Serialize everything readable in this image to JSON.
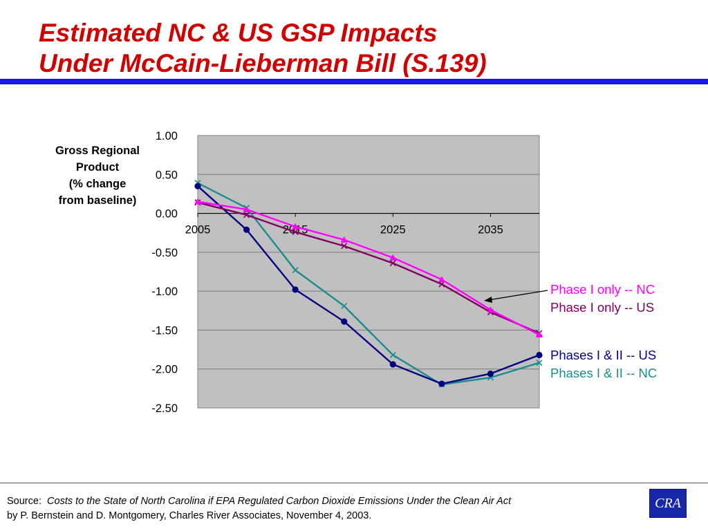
{
  "title": {
    "line1": "Estimated NC & US GSP Impacts",
    "line2": "Under McCain-Lieberman Bill (S.139)"
  },
  "chart_data": {
    "type": "line",
    "ylabel_lines": [
      "Gross Regional",
      "Product",
      "(% change",
      "from baseline)"
    ],
    "xlabel": "",
    "ylim": [
      -2.5,
      1.0
    ],
    "y_ticks": [
      "1.00",
      "0.50",
      "0.00",
      "-0.50",
      "-1.00",
      "-1.50",
      "-2.00",
      "-2.50"
    ],
    "x_ticks": [
      "2005",
      "2015",
      "2025",
      "2035"
    ],
    "x": [
      2005,
      2010,
      2015,
      2020,
      2025,
      2030,
      2035,
      2040
    ],
    "xlim": [
      2005,
      2040
    ],
    "grid": "horizontal",
    "plot_background": "#c0c0c0",
    "series": [
      {
        "name": "Phase I only -- NC",
        "color": "#ff00ff",
        "marker": "triangle",
        "values": [
          0.15,
          0.05,
          -0.17,
          -0.34,
          -0.57,
          -0.85,
          -1.24,
          -1.56
        ]
      },
      {
        "name": "Phase I only -- US",
        "color": "#800060",
        "marker": "x",
        "values": [
          0.14,
          -0.02,
          -0.24,
          -0.42,
          -0.64,
          -0.91,
          -1.27,
          -1.54
        ]
      },
      {
        "name": "Phases I & II -- US",
        "color": "#000080",
        "marker": "circle",
        "values": [
          0.35,
          -0.21,
          -0.98,
          -1.39,
          -1.94,
          -2.19,
          -2.06,
          -1.82
        ]
      },
      {
        "name": "Phases I & II -- NC",
        "color": "#1a8c8c",
        "marker": "x",
        "values": [
          0.39,
          0.07,
          -0.73,
          -1.19,
          -1.82,
          -2.2,
          -2.11,
          -1.92
        ]
      }
    ]
  },
  "legend": {
    "phase1_nc": {
      "label": "Phase I only -- NC",
      "color": "#ff00ff"
    },
    "phase1_us": {
      "label": "Phase I only -- US",
      "color": "#800060"
    },
    "phase12_us": {
      "label": "Phases I & II -- US",
      "color": "#000080"
    },
    "phase12_nc": {
      "label": "Phases I & II -- NC",
      "color": "#1a8c8c"
    }
  },
  "footer": {
    "source_label": "Source:",
    "source_title": "Costs to the State of North Carolina if EPA Regulated Carbon Dioxide Emissions Under the Clean Air Act",
    "credit": "by P. Bernstein and D. Montgomery, Charles River Associates, November 4, 2003."
  },
  "logo": {
    "text": "CRA",
    "color": "#1628a8"
  }
}
